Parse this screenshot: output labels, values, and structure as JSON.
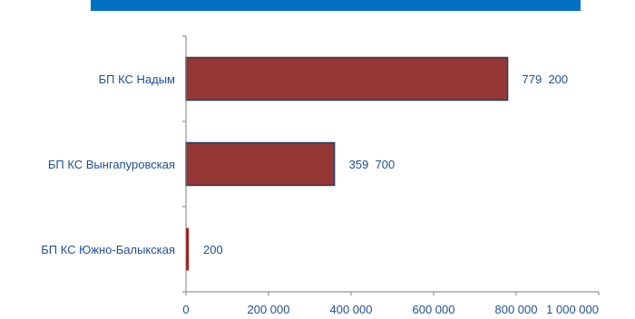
{
  "chart_data": {
    "type": "bar",
    "orientation": "horizontal",
    "title": "",
    "xlabel": "",
    "ylabel": "",
    "categories": [
      "БП КС Надым",
      "БП КС Вынгапуровская",
      "БП КС Южно-Балыкская"
    ],
    "values": [
      779200,
      359700,
      200
    ],
    "data_labels": [
      "779  200",
      "359  700",
      "200"
    ],
    "xlim": [
      0,
      1000000
    ],
    "x_ticks": [
      0,
      200000,
      400000,
      600000,
      800000,
      1000000
    ],
    "x_tick_labels": [
      "0",
      "200 000",
      "400 000",
      "600 000",
      "800 000",
      "1 000 000"
    ],
    "grid": false,
    "legend": "none",
    "colors": {
      "header_band": "#0070c0",
      "bar_fill": "#953735",
      "bar_stroke": "#243f60",
      "small_bar_fill": "#c00000",
      "label_text": "#1f4e9c",
      "axis": "#7f7f7f"
    }
  }
}
